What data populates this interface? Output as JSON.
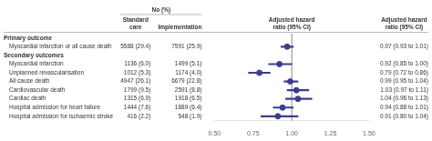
{
  "chart_data": {
    "type": "forest",
    "title": "Adjusted hazard\nratio (95% CI)",
    "categories": [
      "Primary outcome",
      "Myocardial infarction or all cause death",
      "Secondary outcomes",
      "Myocardial infarction",
      "Unplanned revascularisation",
      "All cause death",
      "Cardiovascular death",
      "Cardiac death",
      "Hospital admission for heart failure",
      "Hospital admission for ischaemic stroke"
    ],
    "series": [
      {
        "color": "#3d3d8f",
        "values": [
          null,
          0.97,
          null,
          0.92,
          0.79,
          0.99,
          1.03,
          1.04,
          0.94,
          0.91
        ],
        "lo": [
          null,
          0.93,
          null,
          0.85,
          0.72,
          0.95,
          0.97,
          0.96,
          0.88,
          0.8
        ],
        "hi": [
          null,
          1.01,
          null,
          1.0,
          0.86,
          1.04,
          1.11,
          1.13,
          1.01,
          1.04
        ]
      }
    ],
    "left_columns": {
      "label": "No (%)",
      "columns": [
        {
          "name": "Standard\ncare",
          "values": [
            null,
            "5588 (29.4)",
            null,
            "1136 (6.0)",
            "1012 (5.3)",
            "4947 (26.1)",
            "1799 (9.5)",
            "1315 (6.9)",
            "1444 (7.6)",
            "416 (2.2)"
          ]
        },
        {
          "name": "Implementation",
          "values": [
            null,
            "7591 (25.9)",
            null,
            "1499 (5.1)",
            "1174 (4.0)",
            "6679 (22.8)",
            "2591 (8.8)",
            "1918 (6.5)",
            "1889 (6.4)",
            "548 (1.9)"
          ]
        }
      ]
    },
    "right_column": {
      "name": "Adjusted hazard\nratio (95% CI)",
      "values": [
        null,
        "0.97 (0.93 to 1.01)",
        null,
        "0.92 (0.85 to 1.00)",
        "0.79 (0.72 to 0.86)",
        "0.99 (0.95 to 1.04)",
        "1.03 (0.97 to 1.11)",
        "1.04 (0.96 to 1.13)",
        "0.94 (0.88 to 1.01)",
        "0.91 (0.80 to 1.04)"
      ]
    },
    "xlim": [
      0.5,
      1.5
    ],
    "xticks": [
      {
        "value": 0.5,
        "label": "0.50"
      },
      {
        "value": 0.75,
        "label": "0.75"
      },
      {
        "value": 1.0,
        "label": "1.00"
      },
      {
        "value": 1.25,
        "label": "1.25"
      },
      {
        "value": 1.5,
        "label": "1.50"
      }
    ],
    "reference_line": 1.0,
    "grid": false
  }
}
